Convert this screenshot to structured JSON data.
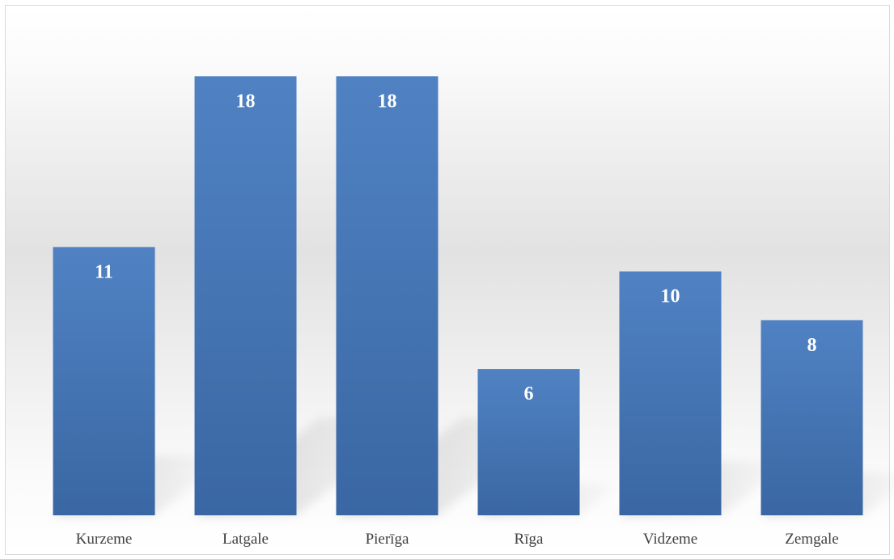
{
  "chart_data": {
    "type": "bar",
    "title": "",
    "xlabel": "",
    "ylabel": "",
    "categories": [
      "Kurzeme",
      "Latgale",
      "Pierīga",
      "Rīga",
      "Vidzeme",
      "Zemgale"
    ],
    "values": [
      11,
      18,
      18,
      6,
      10,
      8
    ],
    "ylim": [
      0,
      20
    ],
    "grid": false,
    "legend": "none",
    "data_labels": "inside-end",
    "colors": {
      "bar_top": "#5082c3",
      "bar_bottom": "#3a67a3",
      "data_label": "#ffffff",
      "tick_label": "#404040",
      "background_mid": "#e2e2e2",
      "border": "#d9d9d9"
    }
  }
}
